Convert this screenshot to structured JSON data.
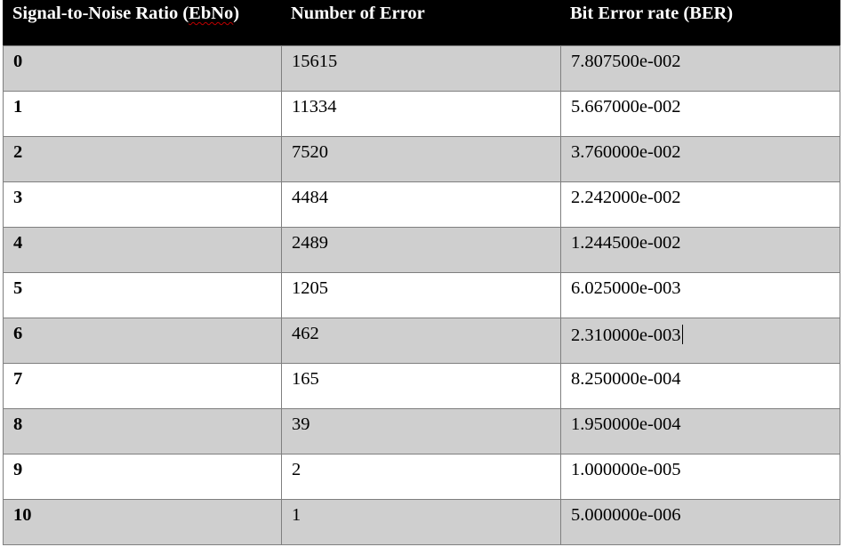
{
  "table": {
    "headers": {
      "col1_prefix": "Signal-to-Noise Ratio (",
      "col1_squiggle": "EbNo",
      "col1_suffix": ")",
      "col2": "Number of Error",
      "col3": "Bit Error rate (BER)"
    },
    "rows": [
      {
        "snr": "0",
        "errors": "15615",
        "ber": "7.807500e-002"
      },
      {
        "snr": "1",
        "errors": "11334",
        "ber": "5.667000e-002"
      },
      {
        "snr": "2",
        "errors": "7520",
        "ber": "3.760000e-002"
      },
      {
        "snr": "3",
        "errors": "4484",
        "ber": "2.242000e-002"
      },
      {
        "snr": "4",
        "errors": "2489",
        "ber": "1.244500e-002"
      },
      {
        "snr": "5",
        "errors": "1205",
        "ber": "6.025000e-003"
      },
      {
        "snr": "6",
        "errors": "462",
        "ber": "2.310000e-003"
      },
      {
        "snr": "7",
        "errors": "165",
        "ber": "8.250000e-004"
      },
      {
        "snr": "8",
        "errors": "39",
        "ber": "1.950000e-004"
      },
      {
        "snr": "9",
        "errors": "2",
        "ber": "1.000000e-005"
      },
      {
        "snr": "10",
        "errors": "1",
        "ber": "5.000000e-006"
      }
    ]
  },
  "colors": {
    "header_bg": "#000000",
    "header_text": "#ffffff",
    "shaded_row": "#cfcfcf",
    "plain_row": "#ffffff",
    "border": "#7f7f7f",
    "spellcheck": "#c00000"
  }
}
